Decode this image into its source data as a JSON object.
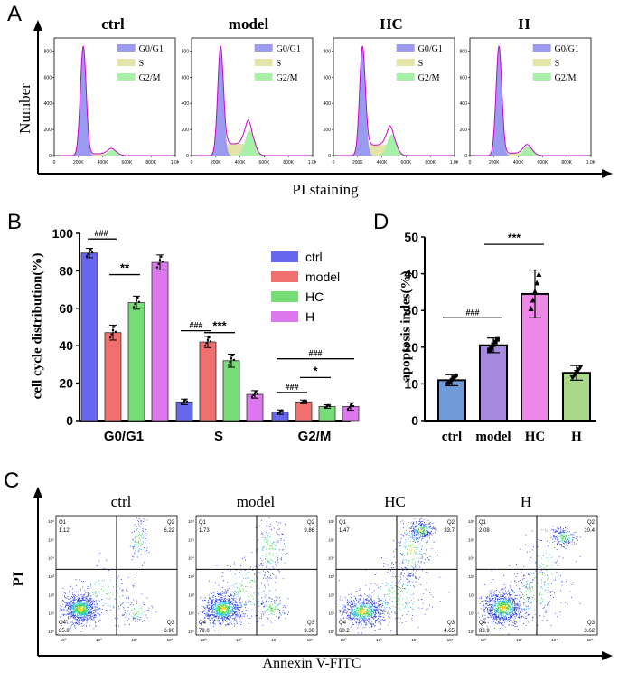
{
  "panels": {
    "a": "A",
    "b": "B",
    "c": "C",
    "d": "D"
  },
  "colors": {
    "ctrl": "#6666ee",
    "model": "#f07070",
    "hc": "#77dd77",
    "h": "#dd77ee",
    "hist_g0": "#9a9af0",
    "hist_s": "#e4e4a8",
    "hist_g2": "#a8f0a8",
    "hist_line": "#cc00cc",
    "d_ctrl": "#6f9bd8",
    "d_model": "#a58adf",
    "d_hc": "#ee88e8",
    "d_h": "#a8d888"
  },
  "hist_panel": {
    "groups": [
      "ctrl",
      "model",
      "HC",
      "H"
    ],
    "legend": [
      "G0/G1",
      "S",
      "G2/M"
    ],
    "yticks": [
      "0",
      "200",
      "400",
      "600",
      "800"
    ],
    "xticks": [
      "0",
      "200K",
      "400K",
      "600K",
      "800K",
      "1.0K"
    ],
    "ylabel": "Number",
    "xlabel": "PI staining",
    "profiles": [
      {
        "group": "ctrl",
        "s_level": 0.03,
        "g2_peak": 0.05
      },
      {
        "group": "model",
        "s_level": 0.2,
        "g2_peak": 0.22
      },
      {
        "group": "HC",
        "s_level": 0.18,
        "g2_peak": 0.18
      },
      {
        "group": "H",
        "s_level": 0.04,
        "g2_peak": 0.08
      }
    ]
  },
  "chart_data": [
    {
      "type": "bar",
      "panel": "B",
      "title": "",
      "categories": [
        "G0/G1",
        "S",
        "G2/M"
      ],
      "ylabel": "cell cycle distribution(%)",
      "ylim": [
        0,
        100
      ],
      "yticks": [
        "0",
        "20",
        "40",
        "60",
        "80",
        "100"
      ],
      "series": [
        {
          "name": "ctrl",
          "values": [
            89.5,
            10.0,
            4.5
          ],
          "errors": [
            2.5,
            1.5,
            1.2
          ]
        },
        {
          "name": "model",
          "values": [
            47.0,
            42.0,
            10.0
          ],
          "errors": [
            4.0,
            3.0,
            1.0
          ]
        },
        {
          "name": "HC",
          "values": [
            63.0,
            32.0,
            7.5
          ],
          "errors": [
            3.5,
            3.5,
            1.0
          ]
        },
        {
          "name": "H",
          "values": [
            84.5,
            14.0,
            7.5
          ],
          "errors": [
            4.0,
            2.0,
            2.0
          ]
        }
      ],
      "significance": [
        {
          "label": "###",
          "category": 0,
          "from": 0,
          "to": 1
        },
        {
          "label": "**",
          "category": 0,
          "from": 1,
          "to": 2
        },
        {
          "label": "###",
          "category": 1,
          "from": 0,
          "to": 1
        },
        {
          "label": "***",
          "category": 1,
          "from": 1,
          "to": 2
        },
        {
          "label": "###",
          "category": 2,
          "from": 0,
          "to": 1
        },
        {
          "label": "*",
          "category": 2,
          "from": 1,
          "to": 2
        },
        {
          "label": "###",
          "category": 2,
          "from": 0,
          "to": 3
        }
      ],
      "legend": [
        "ctrl",
        "model",
        "HC",
        "H"
      ]
    },
    {
      "type": "bar",
      "panel": "D",
      "title": "",
      "categories": [
        "ctrl",
        "model",
        "HC",
        "H"
      ],
      "values": [
        11.0,
        20.5,
        34.5,
        13.0
      ],
      "errors": [
        1.5,
        2.0,
        6.5,
        2.0
      ],
      "ylabel": "apoptosis indes(%)",
      "ylim": [
        0,
        50
      ],
      "yticks": [
        "0",
        "10",
        "20",
        "30",
        "40",
        "50"
      ],
      "significance": [
        {
          "label": "###",
          "from": 0,
          "to": 1
        },
        {
          "label": "***",
          "from": 1,
          "to": 2
        }
      ]
    }
  ],
  "flow_panel": {
    "groups": [
      "ctrl",
      "model",
      "HC",
      "H"
    ],
    "ylabel": "PI",
    "xlabel": "Annexin V-FITC",
    "xticks": [
      "10⁰",
      "10²",
      "10⁴",
      "10⁶"
    ],
    "yticks": [
      "10⁶",
      "10⁵",
      "10⁴",
      "10³",
      "10²",
      "10¹",
      "10⁰"
    ],
    "quadrants": [
      {
        "q1": "Q1",
        "q1v": "1.12",
        "q2": "Q2",
        "q2v": "6.22",
        "q3": "Q3",
        "q3v": "6.90",
        "q4": "Q4",
        "q4v": "85.8"
      },
      {
        "q1": "Q1",
        "q1v": "1.73",
        "q2": "Q2",
        "q2v": "9.86",
        "q3": "Q3",
        "q3v": "9.36",
        "q4": "Q4",
        "q4v": "79.0"
      },
      {
        "q1": "Q1",
        "q1v": "1.47",
        "q2": "Q2",
        "q2v": "33.7",
        "q3": "Q3",
        "q3v": "4.65",
        "q4": "Q4",
        "q4v": "60.2"
      },
      {
        "q1": "Q1",
        "q1v": "2.08",
        "q2": "Q2",
        "q2v": "10.4",
        "q3": "Q3",
        "q3v": "3.62",
        "q4": "Q4",
        "q4v": "83.9"
      }
    ]
  }
}
